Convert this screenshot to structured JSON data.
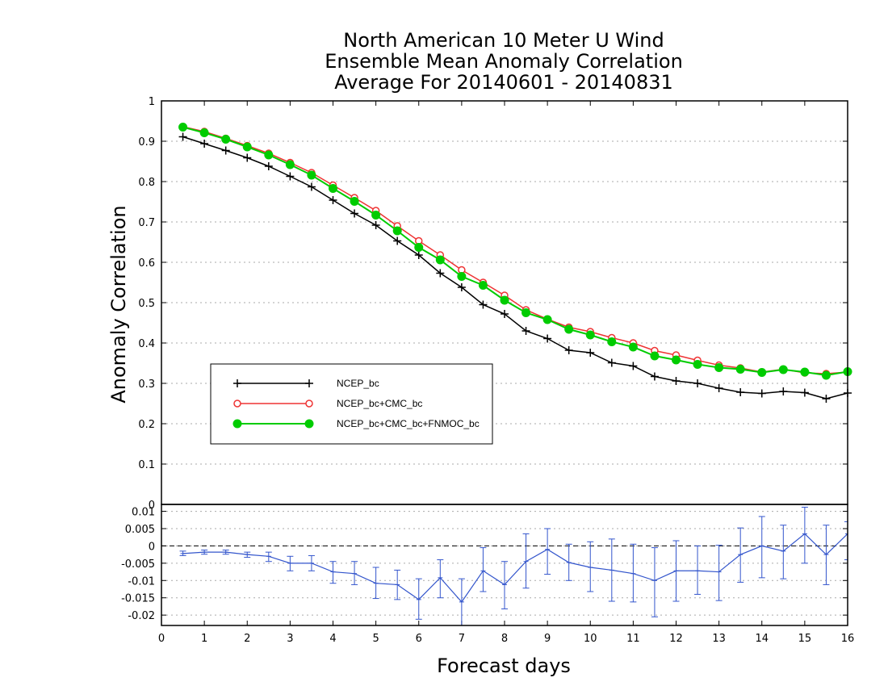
{
  "chart_data": [
    {
      "type": "line",
      "title_lines": [
        "North American 10 Meter U Wind",
        "Ensemble Mean Anomaly Correlation",
        "Average For 20140601 - 20140831"
      ],
      "xlabel": "Forecast days",
      "ylabel": "Anomaly Correlation",
      "xlim": [
        0,
        16
      ],
      "ylim": [
        0,
        1
      ],
      "x_ticks": [
        "0",
        "1",
        "2",
        "3",
        "4",
        "5",
        "6",
        "7",
        "8",
        "9",
        "10",
        "11",
        "12",
        "13",
        "14",
        "15",
        "16"
      ],
      "y_ticks": [
        "0",
        "0.1",
        "0.2",
        "0.3",
        "0.4",
        "0.5",
        "0.6",
        "0.7",
        "0.8",
        "0.9",
        "1"
      ],
      "grid": "horizontal dotted",
      "legend_position": "lower-left",
      "x": [
        0.5,
        1,
        1.5,
        2,
        2.5,
        3,
        3.5,
        4,
        4.5,
        5,
        5.5,
        6,
        6.5,
        7,
        7.5,
        8,
        8.5,
        9,
        9.5,
        10,
        10.5,
        11,
        11.5,
        12,
        12.5,
        13,
        13.5,
        14,
        14.5,
        15,
        15.5,
        16
      ],
      "series": [
        {
          "name": "NCEP_bc",
          "color": "#000000",
          "marker": "plus",
          "values": [
            0.911,
            0.894,
            0.877,
            0.859,
            0.838,
            0.813,
            0.787,
            0.754,
            0.721,
            0.692,
            0.653,
            0.618,
            0.573,
            0.538,
            0.495,
            0.472,
            0.43,
            0.411,
            0.382,
            0.376,
            0.351,
            0.343,
            0.317,
            0.306,
            0.3,
            0.288,
            0.278,
            0.275,
            0.28,
            0.277,
            0.262,
            0.276
          ]
        },
        {
          "name": "NCEP_bc+CMC_bc",
          "color": "#ee3333",
          "marker": "open-circle",
          "values": [
            0.936,
            0.924,
            0.907,
            0.889,
            0.87,
            0.847,
            0.822,
            0.791,
            0.76,
            0.728,
            0.69,
            0.653,
            0.618,
            0.581,
            0.55,
            0.518,
            0.482,
            0.459,
            0.439,
            0.428,
            0.413,
            0.4,
            0.381,
            0.37,
            0.357,
            0.345,
            0.338,
            0.328,
            0.335,
            0.326,
            0.324,
            0.328
          ]
        },
        {
          "name": "NCEP_bc+CMC_bc+FNMOC_bc",
          "color": "#00cc00",
          "marker": "filled-circle",
          "values": [
            0.935,
            0.921,
            0.905,
            0.886,
            0.866,
            0.842,
            0.816,
            0.783,
            0.751,
            0.717,
            0.678,
            0.637,
            0.606,
            0.565,
            0.543,
            0.506,
            0.475,
            0.458,
            0.434,
            0.42,
            0.403,
            0.39,
            0.368,
            0.358,
            0.347,
            0.339,
            0.335,
            0.327,
            0.334,
            0.328,
            0.32,
            0.329
          ]
        }
      ]
    },
    {
      "type": "line",
      "xlim": [
        0,
        16
      ],
      "ylim": [
        -0.023,
        0.012
      ],
      "y_ticks": [
        "0.01",
        "0.005",
        "0",
        "-0.005",
        "-0.01",
        "-0.015",
        "-0.02"
      ],
      "reference_line": 0,
      "grid": "horizontal dotted",
      "series": [
        {
          "name": "",
          "color": "#3355cc",
          "marker": "error-bar",
          "x": [
            0.5,
            1,
            1.5,
            2,
            2.5,
            3,
            3.5,
            4,
            4.5,
            5,
            5.5,
            6,
            6.5,
            7,
            7.5,
            8,
            8.5,
            9,
            9.5,
            10,
            10.5,
            11,
            11.5,
            12,
            12.5,
            13,
            13.5,
            14,
            14.5,
            15,
            15.5,
            16
          ],
          "values": [
            -0.0022,
            -0.0018,
            -0.0018,
            -0.0025,
            -0.003,
            -0.005,
            -0.005,
            -0.0075,
            -0.008,
            -0.0108,
            -0.0112,
            -0.0155,
            -0.0092,
            -0.0162,
            -0.0072,
            -0.0112,
            -0.0045,
            -0.001,
            -0.0048,
            -0.0062,
            -0.007,
            -0.008,
            -0.01,
            -0.0072,
            -0.0072,
            -0.0075,
            -0.0025,
            0.0,
            -0.0015,
            0.0035,
            -0.0025,
            0.0035
          ],
          "err_low": [
            -0.0028,
            -0.0024,
            -0.0024,
            -0.0033,
            -0.0045,
            -0.0072,
            -0.0072,
            -0.0108,
            -0.0112,
            -0.0152,
            -0.0155,
            -0.0212,
            -0.015,
            -0.0232,
            -0.0132,
            -0.0182,
            -0.0122,
            -0.0082,
            -0.01,
            -0.0132,
            -0.016,
            -0.0162,
            -0.0205,
            -0.016,
            -0.014,
            -0.0158,
            -0.0105,
            -0.0092,
            -0.0095,
            -0.005,
            -0.0112,
            -0.004
          ],
          "err_high": [
            -0.0015,
            -0.0012,
            -0.0012,
            -0.0018,
            -0.0018,
            -0.003,
            -0.0028,
            -0.0045,
            -0.0045,
            -0.0062,
            -0.007,
            -0.0095,
            -0.004,
            -0.0095,
            -0.0005,
            -0.0045,
            0.0035,
            0.005,
            0.0005,
            0.0012,
            0.002,
            0.0005,
            -0.0005,
            0.0015,
            0.0,
            0.0002,
            0.0052,
            0.0085,
            0.006,
            0.0112,
            0.006,
            0.007
          ]
        }
      ]
    }
  ]
}
